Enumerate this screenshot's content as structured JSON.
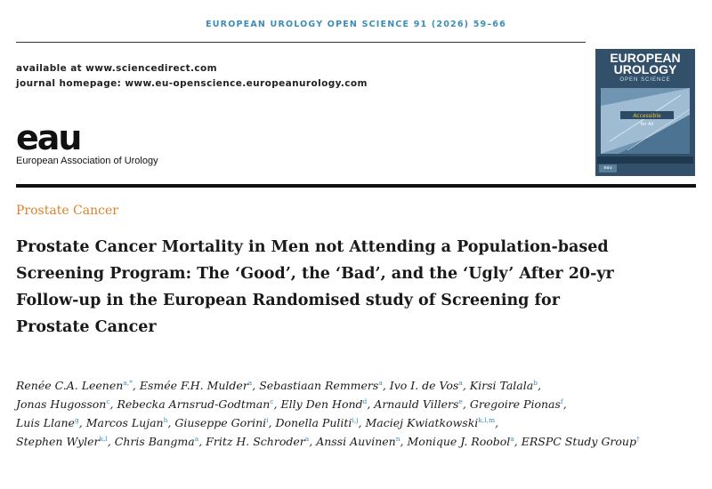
{
  "journal": {
    "header": "EUROPEAN UROLOGY OPEN SCIENCE 91 (2026) 59–66",
    "available_at": "available at www.sciencedirect.com",
    "homepage": "journal homepage: www.eu-openscience.europeanurology.com"
  },
  "publisher": {
    "logo_text": "eau",
    "name": "European Association of Urology"
  },
  "cover": {
    "title_line1": "EUROPEAN",
    "title_line2": "UROLOGY",
    "subtitle": "OPEN SCIENCE",
    "banner": "Accessible",
    "banner2": "for All",
    "badge": "eau"
  },
  "article": {
    "section": "Prostate Cancer",
    "title_lines": [
      "Prostate Cancer Mortality in Men not Attending a Population-based",
      "Screening Program: The ‘Good’, the ‘Bad’, and the ‘Ugly’ After 20-yr",
      "Follow-up in the European Randomised study of Screening for",
      "Prostate Cancer"
    ]
  },
  "authors": [
    {
      "name": "Renée C.A. Leenen",
      "aff": "a,*",
      "sep": ", "
    },
    {
      "name": "Esmée F.H. Mulder",
      "aff": "a",
      "sep": ", "
    },
    {
      "name": "Sebastiaan Remmers",
      "aff": "a",
      "sep": ", "
    },
    {
      "name": "Ivo I. de Vos",
      "aff": "a",
      "sep": ", "
    },
    {
      "name": "Kirsi Talala",
      "aff": "b",
      "sep": ","
    },
    {
      "name": "Jonas Hugosson",
      "aff": "c",
      "sep": ", "
    },
    {
      "name": "Rebecka Arnsrud-Godtman",
      "aff": "c",
      "sep": ", "
    },
    {
      "name": "Elly Den Hond",
      "aff": "d",
      "sep": ", "
    },
    {
      "name": "Arnauld Villers",
      "aff": "e",
      "sep": ", "
    },
    {
      "name": "Gregoire Pionas",
      "aff": "f",
      "sep": ","
    },
    {
      "name": "Luis Llane",
      "aff": "g",
      "sep": ", "
    },
    {
      "name": "Marcos Lujan",
      "aff": "h",
      "sep": ", "
    },
    {
      "name": "Giuseppe Gorini",
      "aff": "i",
      "sep": ", "
    },
    {
      "name": "Donella Puliti",
      "aff": "i,j",
      "sep": ", "
    },
    {
      "name": "Maciej Kwiatkowski",
      "aff": "k,l,m",
      "sep": ","
    },
    {
      "name": "Stephen Wyler",
      "aff": "k,l",
      "sep": ", "
    },
    {
      "name": "Chris Bangma",
      "aff": "a",
      "sep": ", "
    },
    {
      "name": "Fritz H. Schroder",
      "aff": "a",
      "sep": ", "
    },
    {
      "name": "Anssi Auvinen",
      "aff": "n",
      "sep": ", "
    },
    {
      "name": "Monique J. Roobol",
      "aff": "a",
      "sep": ", "
    },
    {
      "name": "ERSPC Study Group",
      "aff": "†",
      "sep": ""
    }
  ],
  "colors": {
    "journal_blue": "#3b8db8",
    "section_orange": "#d9822b",
    "cover_bg": "#33506a"
  }
}
